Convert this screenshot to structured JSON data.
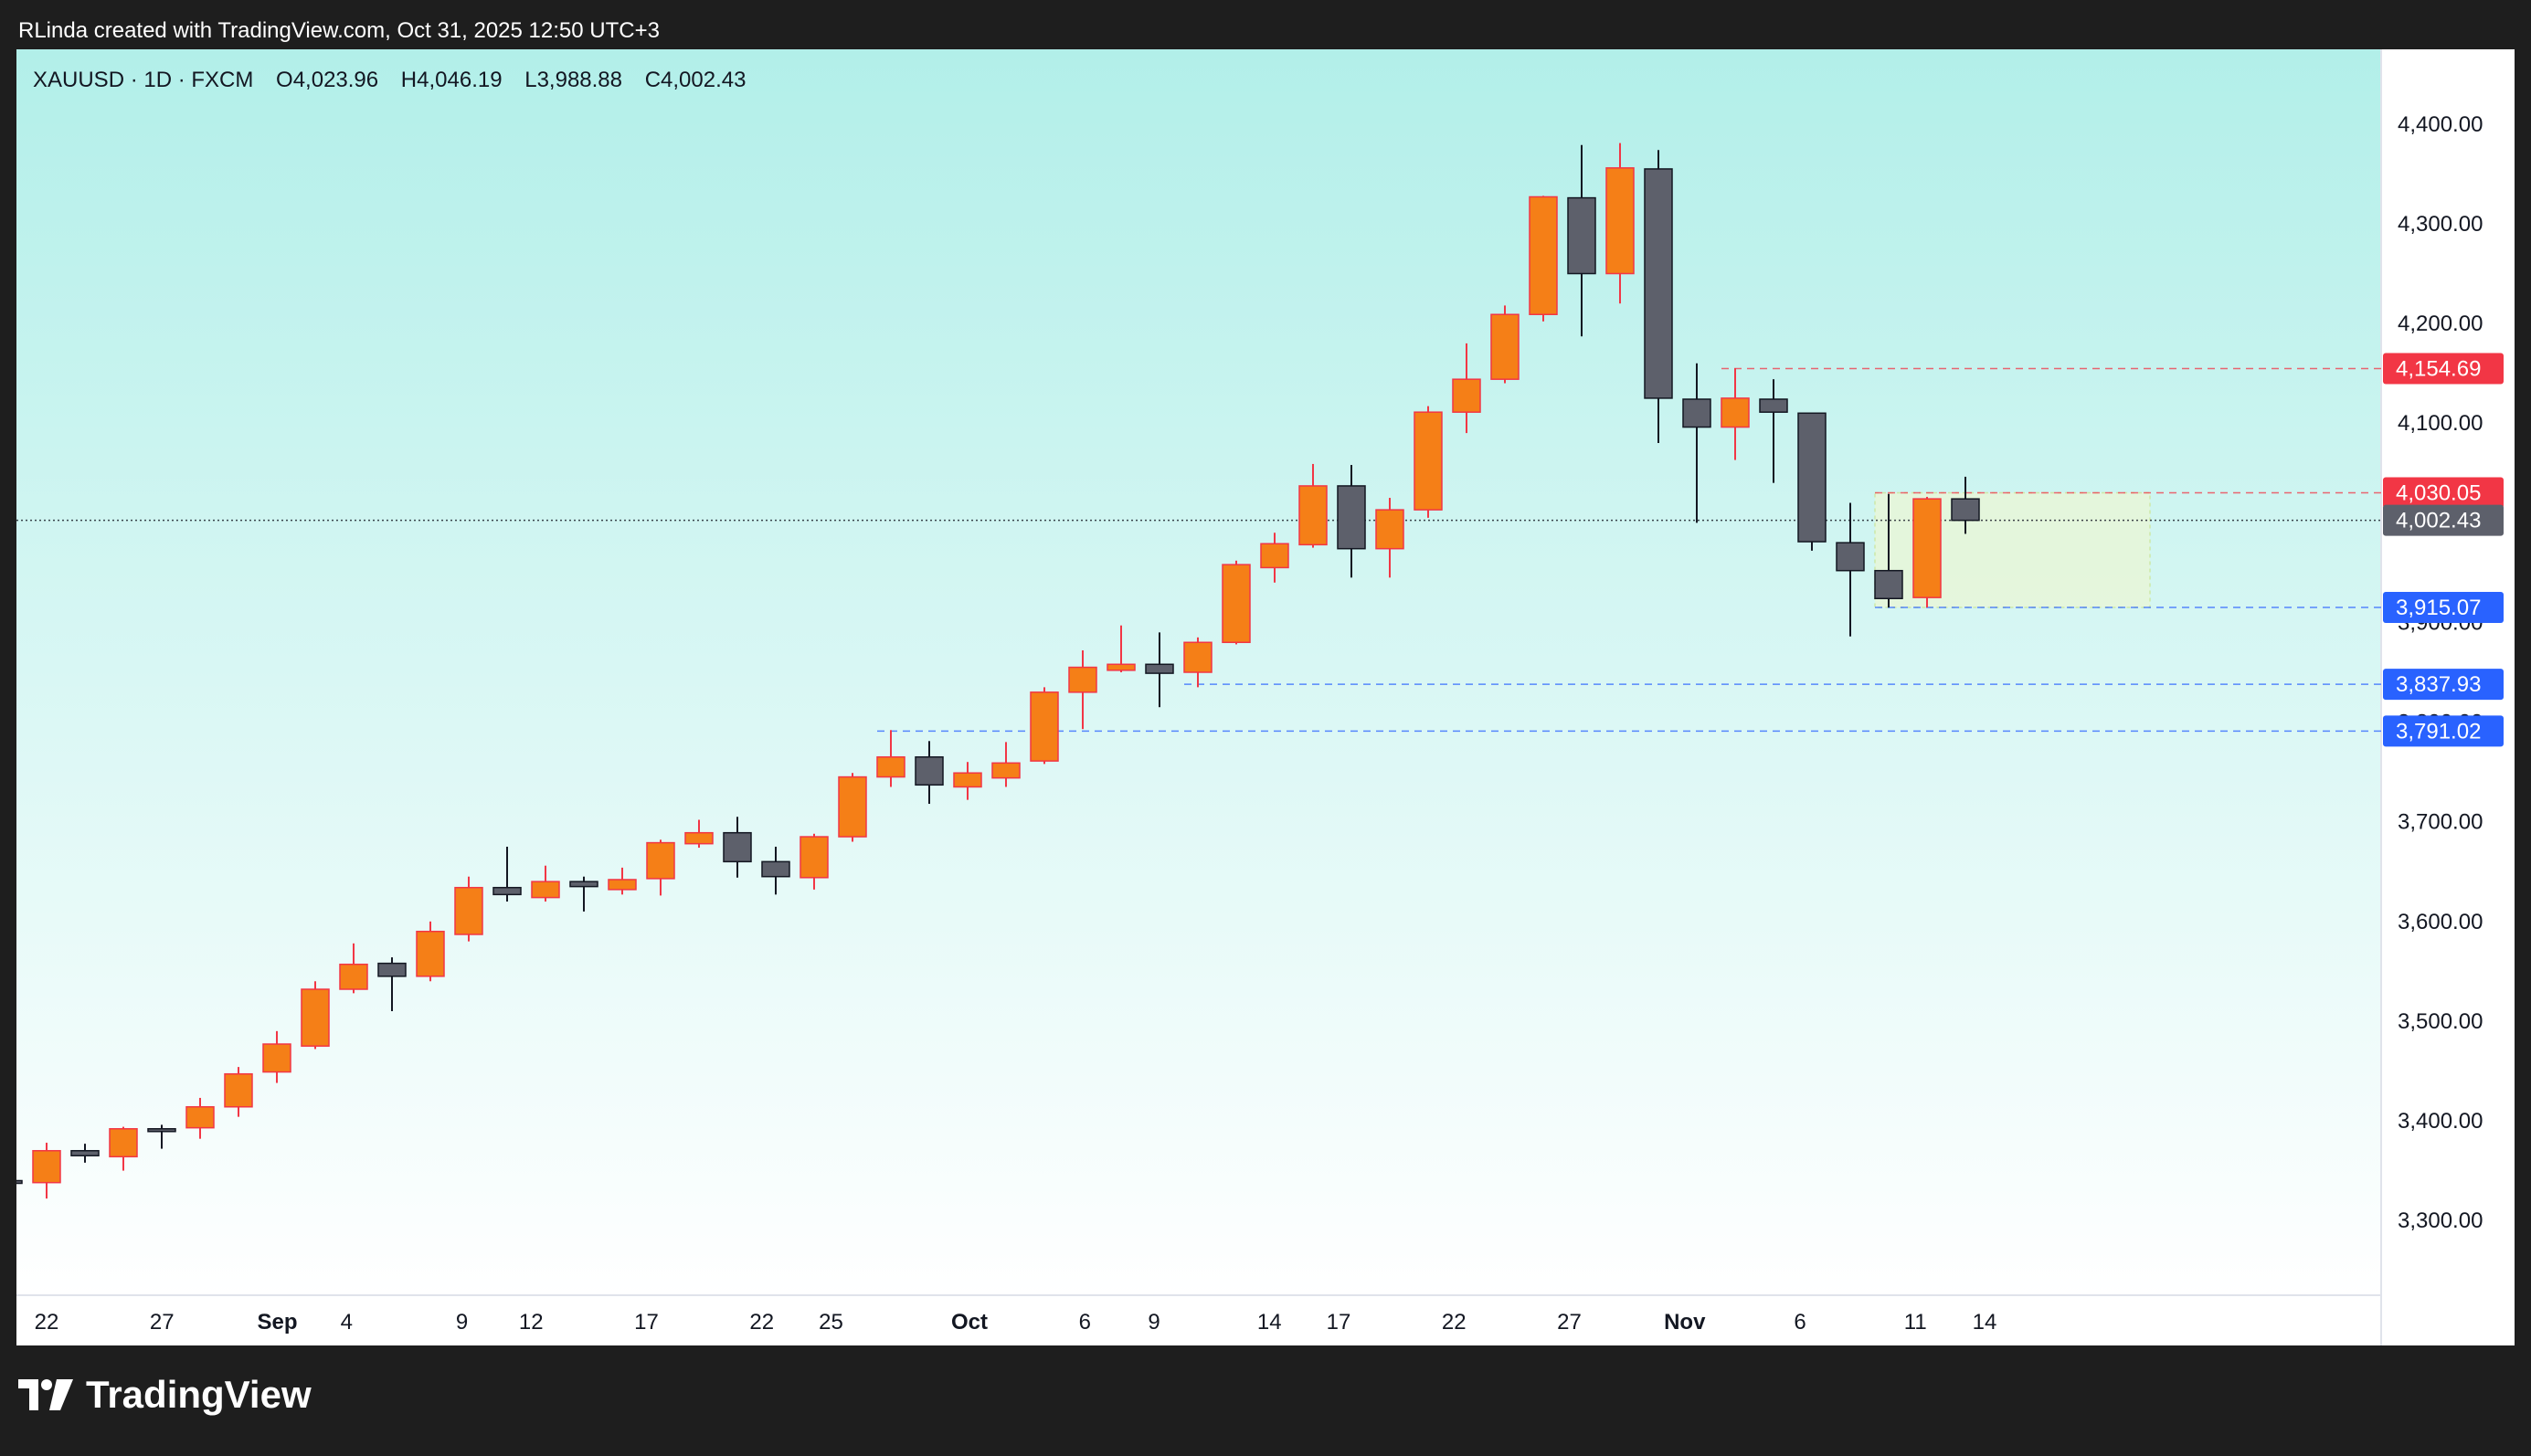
{
  "header": {
    "credit": "RLinda created with TradingView.com, Oct 31, 2025 12:50 UTC+3"
  },
  "symbol": {
    "name": "XAUUSD · 1D · FXCM",
    "open": "O4,023.96",
    "high": "H4,046.19",
    "low": "L3,988.88",
    "close": "C4,002.43"
  },
  "colors": {
    "up": "#f57f17",
    "down": "#5d606b",
    "up_wick": "#f23645",
    "down_wick": "#131722",
    "bg_top": "#b2efe9",
    "bg_bottom": "#ffffff",
    "red_label": "#f23645",
    "blue_label": "#2962ff",
    "grey_label": "#5d606b",
    "zone_fill": "#e8f6d8"
  },
  "footer": {
    "logo_text": "TradingView"
  },
  "chart_data": {
    "type": "candlestick",
    "ylim": [
      3225,
      4475
    ],
    "yticks": [
      {
        "value": 4400,
        "label": "4,400.00"
      },
      {
        "value": 4300,
        "label": "4,300.00"
      },
      {
        "value": 4200,
        "label": "4,200.00"
      },
      {
        "value": 4100,
        "label": "4,100.00"
      },
      {
        "value": 3900,
        "label": "3,900.00"
      },
      {
        "value": 3800,
        "label": "3,800.00"
      },
      {
        "value": 3700,
        "label": "3,700.00"
      },
      {
        "value": 3600,
        "label": "3,600.00"
      },
      {
        "value": 3500,
        "label": "3,500.00"
      },
      {
        "value": 3400,
        "label": "3,400.00"
      },
      {
        "value": 3300,
        "label": "3,300.00"
      }
    ],
    "xticks": [
      {
        "date": "2025-08-22",
        "label": "22"
      },
      {
        "date": "2025-08-27",
        "label": "27"
      },
      {
        "date": "2025-09-01",
        "label": "Sep"
      },
      {
        "date": "2025-09-04",
        "label": "4"
      },
      {
        "date": "2025-09-09",
        "label": "9"
      },
      {
        "date": "2025-09-12",
        "label": "12"
      },
      {
        "date": "2025-09-17",
        "label": "17"
      },
      {
        "date": "2025-09-22",
        "label": "22"
      },
      {
        "date": "2025-09-25",
        "label": "25"
      },
      {
        "date": "2025-10-01",
        "label": "Oct"
      },
      {
        "date": "2025-10-06",
        "label": "6"
      },
      {
        "date": "2025-10-09",
        "label": "9"
      },
      {
        "date": "2025-10-14",
        "label": "14"
      },
      {
        "date": "2025-10-17",
        "label": "17"
      },
      {
        "date": "2025-10-22",
        "label": "22"
      },
      {
        "date": "2025-10-27",
        "label": "27"
      },
      {
        "date": "2025-11-01",
        "label": "Nov"
      },
      {
        "date": "2025-11-06",
        "label": "6"
      },
      {
        "date": "2025-11-11",
        "label": "11"
      },
      {
        "date": "2025-11-14",
        "label": "14"
      }
    ],
    "candles": [
      {
        "date": "2025-08-21",
        "open": 3340,
        "high": 3345,
        "low": 3330,
        "close": 3338
      },
      {
        "date": "2025-08-22",
        "open": 3338,
        "high": 3378,
        "low": 3322,
        "close": 3370
      },
      {
        "date": "2025-08-25",
        "open": 3370,
        "high": 3377,
        "low": 3358,
        "close": 3365
      },
      {
        "date": "2025-08-26",
        "open": 3364,
        "high": 3394,
        "low": 3350,
        "close": 3392
      },
      {
        "date": "2025-08-27",
        "open": 3392,
        "high": 3396,
        "low": 3372,
        "close": 3391
      },
      {
        "date": "2025-08-28",
        "open": 3393,
        "high": 3423,
        "low": 3382,
        "close": 3414
      },
      {
        "date": "2025-08-29",
        "open": 3414,
        "high": 3454,
        "low": 3404,
        "close": 3447
      },
      {
        "date": "2025-09-01",
        "open": 3449,
        "high": 3490,
        "low": 3438,
        "close": 3477
      },
      {
        "date": "2025-09-02",
        "open": 3475,
        "high": 3540,
        "low": 3472,
        "close": 3532
      },
      {
        "date": "2025-09-03",
        "open": 3532,
        "high": 3578,
        "low": 3528,
        "close": 3557
      },
      {
        "date": "2025-09-04",
        "open": 3558,
        "high": 3564,
        "low": 3510,
        "close": 3545
      },
      {
        "date": "2025-09-05",
        "open": 3545,
        "high": 3600,
        "low": 3540,
        "close": 3590
      },
      {
        "date": "2025-09-08",
        "open": 3587,
        "high": 3645,
        "low": 3580,
        "close": 3634
      },
      {
        "date": "2025-09-09",
        "open": 3634,
        "high": 3675,
        "low": 3620,
        "close": 3627
      },
      {
        "date": "2025-09-10",
        "open": 3624,
        "high": 3656,
        "low": 3620,
        "close": 3640
      },
      {
        "date": "2025-09-11",
        "open": 3640,
        "high": 3645,
        "low": 3610,
        "close": 3635
      },
      {
        "date": "2025-09-12",
        "open": 3632,
        "high": 3654,
        "low": 3627,
        "close": 3642
      },
      {
        "date": "2025-09-15",
        "open": 3643,
        "high": 3682,
        "low": 3626,
        "close": 3679
      },
      {
        "date": "2025-09-16",
        "open": 3678,
        "high": 3702,
        "low": 3674,
        "close": 3689
      },
      {
        "date": "2025-09-17",
        "open": 3689,
        "high": 3705,
        "low": 3644,
        "close": 3660
      },
      {
        "date": "2025-09-18",
        "open": 3660,
        "high": 3675,
        "low": 3627,
        "close": 3645
      },
      {
        "date": "2025-09-19",
        "open": 3644,
        "high": 3688,
        "low": 3632,
        "close": 3685
      },
      {
        "date": "2025-09-22",
        "open": 3685,
        "high": 3749,
        "low": 3680,
        "close": 3745
      },
      {
        "date": "2025-09-23",
        "open": 3745,
        "high": 3792,
        "low": 3735,
        "close": 3765
      },
      {
        "date": "2025-09-24",
        "open": 3765,
        "high": 3781,
        "low": 3718,
        "close": 3737
      },
      {
        "date": "2025-09-25",
        "open": 3735,
        "high": 3760,
        "low": 3722,
        "close": 3749
      },
      {
        "date": "2025-09-26",
        "open": 3744,
        "high": 3780,
        "low": 3735,
        "close": 3759
      },
      {
        "date": "2025-09-29",
        "open": 3761,
        "high": 3835,
        "low": 3758,
        "close": 3830
      },
      {
        "date": "2025-09-30",
        "open": 3830,
        "high": 3872,
        "low": 3793,
        "close": 3855
      },
      {
        "date": "2025-10-01",
        "open": 3852,
        "high": 3897,
        "low": 3850,
        "close": 3858
      },
      {
        "date": "2025-10-02",
        "open": 3858,
        "high": 3890,
        "low": 3815,
        "close": 3849
      },
      {
        "date": "2025-10-03",
        "open": 3850,
        "high": 3885,
        "low": 3835,
        "close": 3880
      },
      {
        "date": "2025-10-06",
        "open": 3880,
        "high": 3962,
        "low": 3878,
        "close": 3958
      },
      {
        "date": "2025-10-07",
        "open": 3955,
        "high": 3990,
        "low": 3940,
        "close": 3979
      },
      {
        "date": "2025-10-08",
        "open": 3978,
        "high": 4059,
        "low": 3975,
        "close": 4037
      },
      {
        "date": "2025-10-09",
        "open": 4037,
        "high": 4058,
        "low": 3945,
        "close": 3974
      },
      {
        "date": "2025-10-10",
        "open": 3974,
        "high": 4025,
        "low": 3945,
        "close": 4013
      },
      {
        "date": "2025-10-13",
        "open": 4013,
        "high": 4117,
        "low": 4005,
        "close": 4111
      },
      {
        "date": "2025-10-14",
        "open": 4111,
        "high": 4180,
        "low": 4090,
        "close": 4144
      },
      {
        "date": "2025-10-15",
        "open": 4144,
        "high": 4218,
        "low": 4140,
        "close": 4209
      },
      {
        "date": "2025-10-16",
        "open": 4209,
        "high": 4328,
        "low": 4202,
        "close": 4327
      },
      {
        "date": "2025-10-17",
        "open": 4326,
        "high": 4379,
        "low": 4187,
        "close": 4250
      },
      {
        "date": "2025-10-20",
        "open": 4250,
        "high": 4381,
        "low": 4220,
        "close": 4356
      },
      {
        "date": "2025-10-21",
        "open": 4355,
        "high": 4374,
        "low": 4080,
        "close": 4125
      },
      {
        "date": "2025-10-22",
        "open": 4124,
        "high": 4160,
        "low": 4000,
        "close": 4096
      },
      {
        "date": "2025-10-23",
        "open": 4096,
        "high": 4155,
        "low": 4063,
        "close": 4125
      },
      {
        "date": "2025-10-24",
        "open": 4124,
        "high": 4144,
        "low": 4040,
        "close": 4111
      },
      {
        "date": "2025-10-27",
        "open": 4110,
        "high": 4110,
        "low": 3972,
        "close": 3981
      },
      {
        "date": "2025-10-28",
        "open": 3980,
        "high": 4020,
        "low": 3886,
        "close": 3952
      },
      {
        "date": "2025-10-29",
        "open": 3952,
        "high": 4029,
        "low": 3915,
        "close": 3924
      },
      {
        "date": "2025-10-30",
        "open": 3925,
        "high": 4026,
        "low": 3915,
        "close": 4024
      },
      {
        "date": "2025-10-31",
        "open": 4023.96,
        "high": 4046.19,
        "low": 3988.88,
        "close": 4002.43
      }
    ],
    "levels": [
      {
        "value": 4154.69,
        "label": "4,154.69",
        "color": "red",
        "style": "dashed",
        "from": "2025-10-23"
      },
      {
        "value": 4030.05,
        "label": "4,030.05",
        "color": "red",
        "style": "dashed",
        "from": "2025-10-29"
      },
      {
        "value": 4002.43,
        "label": "4,002.43",
        "color": "grey",
        "style": "dotted",
        "from": "start"
      },
      {
        "value": 3915.07,
        "label": "3,915.07",
        "color": "blue",
        "style": "dashed",
        "from": "2025-10-29"
      },
      {
        "value": 3837.93,
        "label": "3,837.93",
        "color": "blue",
        "style": "dashed",
        "from": "2025-10-03"
      },
      {
        "value": 3791.02,
        "label": "3,791.02",
        "color": "blue",
        "style": "dashed",
        "from": "2025-09-23"
      }
    ],
    "zone": {
      "from": "2025-10-29",
      "to": "2025-11-08",
      "top": 4030.05,
      "bottom": 3915.07
    }
  }
}
